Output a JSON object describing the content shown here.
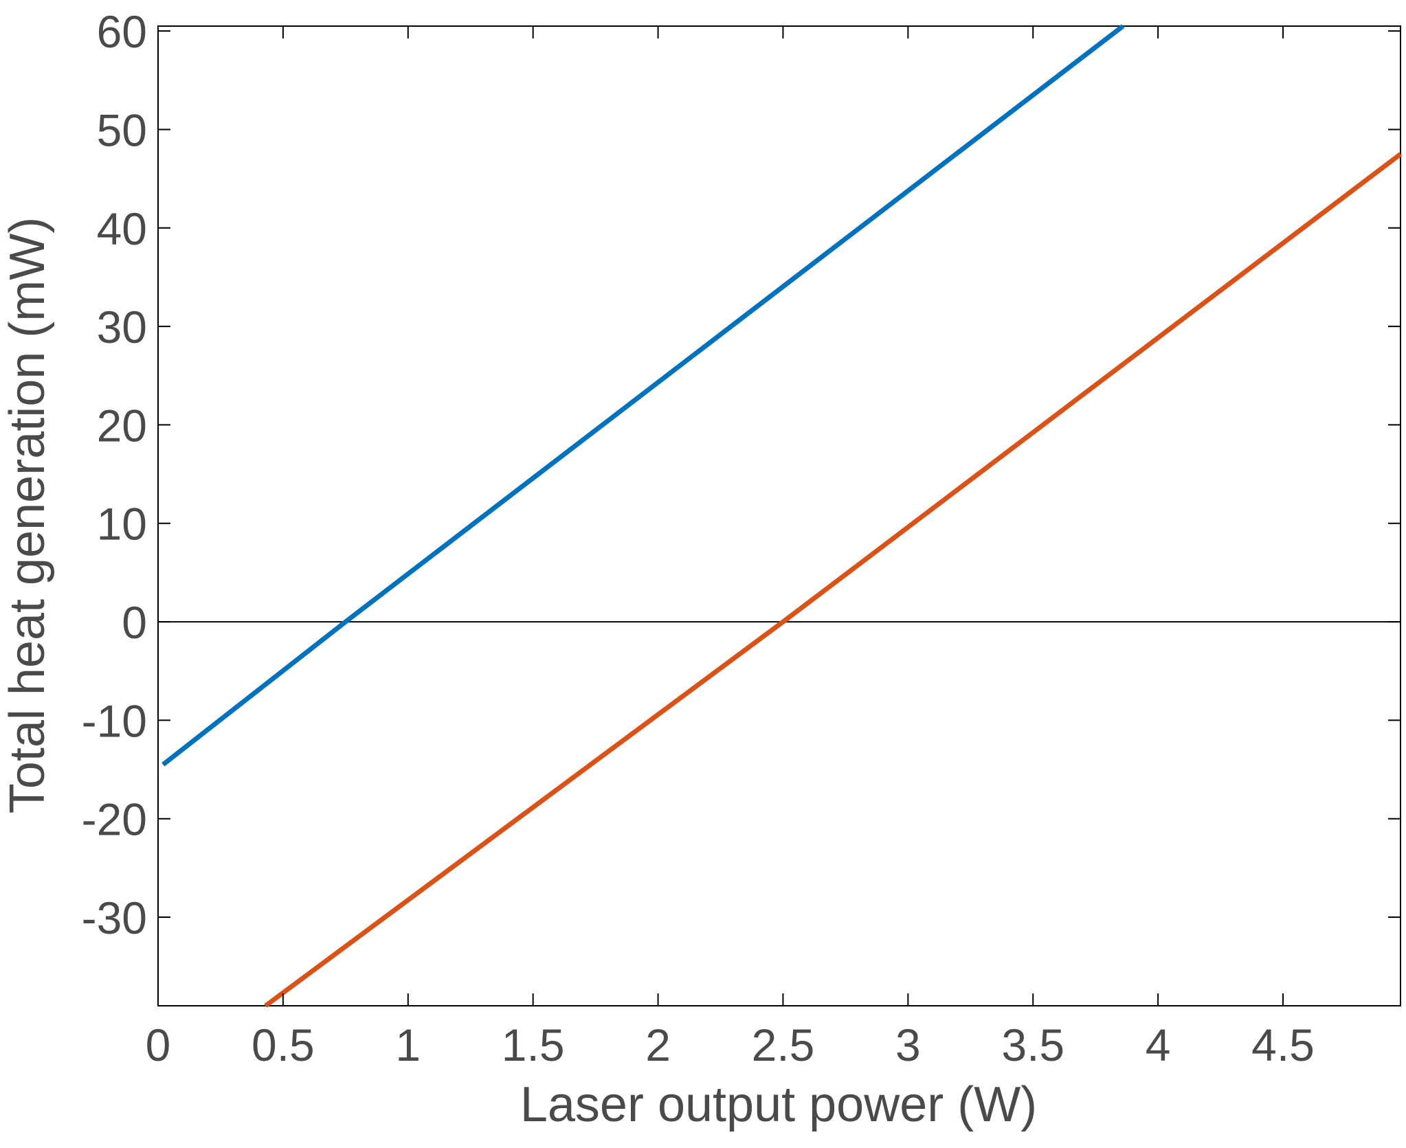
{
  "chart_data": {
    "type": "line",
    "title": "",
    "xlabel": "Laser output power (W)",
    "ylabel": "Total heat generation (mW)",
    "xlim": [
      0,
      4.97
    ],
    "ylim": [
      -39,
      60.5
    ],
    "grid": false,
    "xticks": [
      0,
      0.5,
      1,
      1.5,
      2,
      2.5,
      3,
      3.5,
      4,
      4.5
    ],
    "xtick_labels": [
      "0",
      "0.5",
      "1",
      "1.5",
      "2",
      "2.5",
      "3",
      "3.5",
      "4",
      "4.5"
    ],
    "yticks": [
      -30,
      -20,
      -10,
      0,
      10,
      20,
      30,
      40,
      50,
      60
    ],
    "ytick_labels": [
      "-30",
      "-20",
      "-10",
      "0",
      "10",
      "20",
      "30",
      "40",
      "50",
      "60"
    ],
    "series": [
      {
        "color": "#0072BD",
        "x": [
          0.02,
          0.75,
          3.86
        ],
        "y": [
          -14.5,
          0,
          60.5
        ]
      },
      {
        "color": "#D95319",
        "x": [
          0.43,
          2.5,
          4.97
        ],
        "y": [
          -39,
          0,
          47.5
        ]
      }
    ],
    "reference_line": {
      "y": 0,
      "color": "#000000"
    }
  }
}
